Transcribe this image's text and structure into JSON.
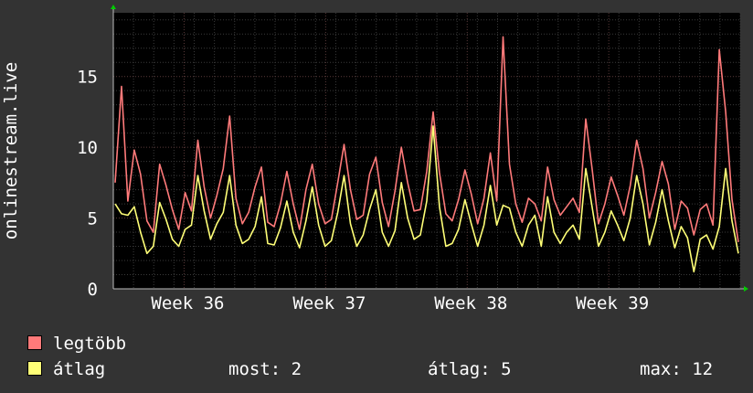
{
  "chart_data": {
    "type": "line",
    "ylabel": "onlinestream.live",
    "ylim": [
      0,
      19.5
    ],
    "y_ticks": [
      0,
      5,
      10,
      15
    ],
    "x_range_days": [
      0,
      31
    ],
    "x_ticks": [
      {
        "label": "Week 36",
        "day": 3.5
      },
      {
        "label": "Week 37",
        "day": 10.5
      },
      {
        "label": "Week 38",
        "day": 17.5
      },
      {
        "label": "Week 39",
        "day": 24.5
      }
    ],
    "grid": true,
    "series": [
      {
        "name": "legtöbb",
        "color": "#ff7a7a",
        "values": [
          7.5,
          14.3,
          6.2,
          9.8,
          8.1,
          4.8,
          4.0,
          8.8,
          7.3,
          5.6,
          4.2,
          6.8,
          5.5,
          10.5,
          7.2,
          5.0,
          6.6,
          8.5,
          12.2,
          6.4,
          4.6,
          5.4,
          7.2,
          8.6,
          4.7,
          4.4,
          6.0,
          8.3,
          6.0,
          4.2,
          7.0,
          8.8,
          6.0,
          4.6,
          4.9,
          7.5,
          10.2,
          7.0,
          4.9,
          5.2,
          8.1,
          9.3,
          6.1,
          4.4,
          6.9,
          10.0,
          7.5,
          5.5,
          5.6,
          8.3,
          12.5,
          8.2,
          5.3,
          4.8,
          6.3,
          8.4,
          6.7,
          4.6,
          6.4,
          9.6,
          6.2,
          17.8,
          8.8,
          6.0,
          4.7,
          6.4,
          6.0,
          4.8,
          8.6,
          6.3,
          5.2,
          5.8,
          6.4,
          5.4,
          12.0,
          8.5,
          4.6,
          6.0,
          7.9,
          6.6,
          5.2,
          7.3,
          10.5,
          8.5,
          5.0,
          6.8,
          9.0,
          7.4,
          4.2,
          6.2,
          5.7,
          3.8,
          5.6,
          6.0,
          4.5,
          16.9,
          12.5,
          6.3,
          3.3
        ]
      },
      {
        "name": "átlag",
        "color": "#ffff77",
        "values": [
          6.0,
          5.3,
          5.2,
          5.8,
          4.0,
          2.5,
          3.0,
          6.1,
          4.9,
          3.5,
          3.0,
          4.2,
          4.5,
          8.0,
          5.5,
          3.5,
          4.6,
          5.4,
          8.0,
          4.5,
          3.2,
          3.5,
          4.4,
          6.5,
          3.2,
          3.1,
          4.3,
          6.2,
          4.0,
          2.9,
          4.8,
          7.2,
          4.5,
          3.0,
          3.4,
          5.4,
          8.0,
          4.6,
          3.0,
          3.8,
          5.6,
          7.0,
          4.0,
          3.0,
          4.1,
          7.5,
          5.0,
          3.5,
          3.8,
          6.2,
          11.5,
          5.8,
          3.0,
          3.2,
          4.2,
          6.3,
          4.6,
          3.0,
          4.5,
          7.3,
          4.5,
          5.9,
          5.7,
          4.0,
          3.0,
          4.5,
          5.2,
          3.0,
          6.5,
          4.0,
          3.2,
          4.0,
          4.5,
          3.5,
          8.5,
          5.8,
          3.0,
          4.0,
          5.5,
          4.5,
          3.4,
          5.0,
          8.0,
          6.0,
          3.1,
          4.7,
          7.0,
          4.8,
          2.9,
          4.4,
          3.6,
          1.2,
          3.5,
          3.8,
          2.8,
          4.4,
          8.5,
          4.8,
          2.5
        ]
      }
    ]
  },
  "legend": {
    "items": [
      {
        "label": "legtöbb",
        "color": "#ff7a7a"
      },
      {
        "label": "átlag",
        "color": "#ffff77"
      }
    ],
    "stats": {
      "now_label": "most: 2",
      "avg_label": "átlag: 5",
      "max_label": "max: 12"
    }
  }
}
